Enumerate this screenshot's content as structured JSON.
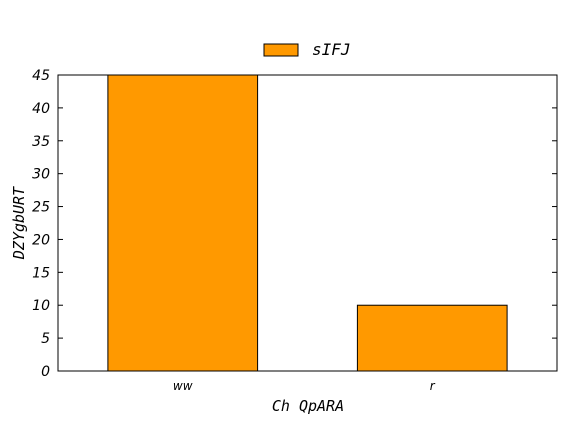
{
  "chart_data": {
    "type": "bar",
    "categories": [
      "ww",
      "r"
    ],
    "series": [
      {
        "name": "sIFJ",
        "values": [
          45,
          10
        ],
        "color": "#ff9900"
      }
    ],
    "title": "",
    "xlabel": "Ch QpARA",
    "ylabel": "DZYgbURT",
    "ylim": [
      0,
      45
    ],
    "yticks": [
      0,
      5,
      10,
      15,
      20,
      25,
      30,
      35,
      40,
      45
    ],
    "grid": false,
    "legend_position": "top-center"
  }
}
